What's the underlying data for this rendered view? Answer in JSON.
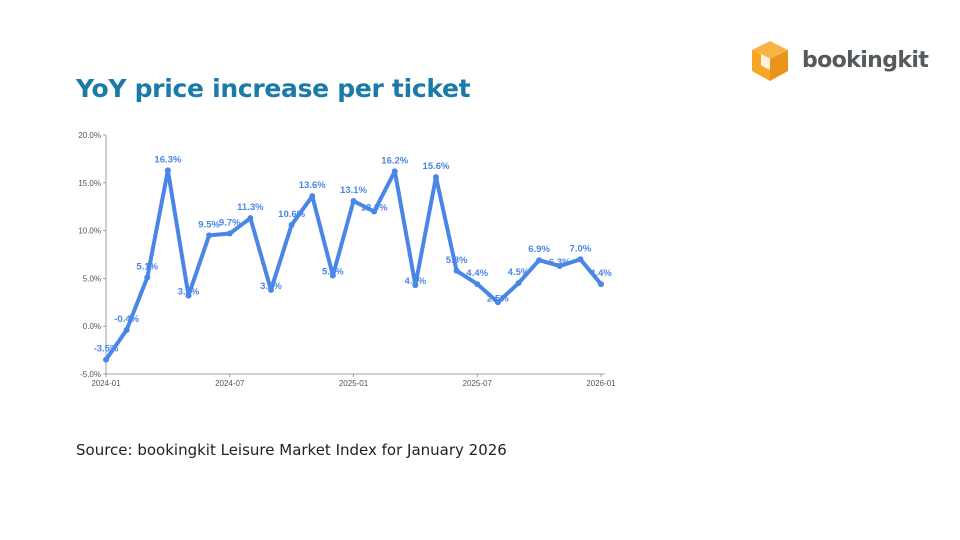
{
  "title": "YoY price increase per ticket",
  "source": "Source: bookingkit Leisure Market Index for January 2026",
  "logo": {
    "icon": "cube-icon",
    "text": "bookingkit",
    "color": "#f5a623"
  },
  "colors": {
    "title": "#1a7aa8",
    "line": "#4a86e8"
  },
  "chart_data": {
    "type": "line",
    "title": "",
    "xlabel": "",
    "ylabel": "",
    "ylim": [
      -5.0,
      20.0
    ],
    "grid": false,
    "yticks": [
      "-5.0%",
      "0.0%",
      "5.0%",
      "10.0%",
      "15.0%",
      "20.0%"
    ],
    "xticks": [
      "2024-01",
      "2024-07",
      "2025-01",
      "2025-07",
      "2026-01"
    ],
    "x": [
      "2024-01",
      "2024-02",
      "2024-03",
      "2024-04",
      "2024-05",
      "2024-06",
      "2024-07",
      "2024-08",
      "2024-09",
      "2024-10",
      "2024-11",
      "2024-12",
      "2025-01",
      "2025-02",
      "2025-03",
      "2025-04",
      "2025-05",
      "2025-06",
      "2025-07",
      "2025-08",
      "2025-09",
      "2025-10",
      "2025-11",
      "2025-12",
      "2026-01"
    ],
    "series": [
      {
        "values": [
          -3.5,
          -0.4,
          5.1,
          16.3,
          3.2,
          9.5,
          9.7,
          11.3,
          3.8,
          10.6,
          13.6,
          5.3,
          13.1,
          12.0,
          16.2,
          4.3,
          15.6,
          5.8,
          4.4,
          2.5,
          4.5,
          6.9,
          6.3,
          7.0,
          4.4
        ],
        "labels": [
          "-3.5%",
          "-0.4%",
          "5.1%",
          "16.3%",
          "3.2%",
          "9.5%",
          "9.7%",
          "11.3%",
          "3.8%",
          "10.6%",
          "13.6%",
          "5.3%",
          "13.1%",
          "12.0%",
          "16.2%",
          "4.3%",
          "15.6%",
          "5.8%",
          "4.4%",
          "2.5%",
          "4.5%",
          "6.9%",
          "6.3%",
          "7.0%",
          "4.4%"
        ]
      }
    ]
  }
}
